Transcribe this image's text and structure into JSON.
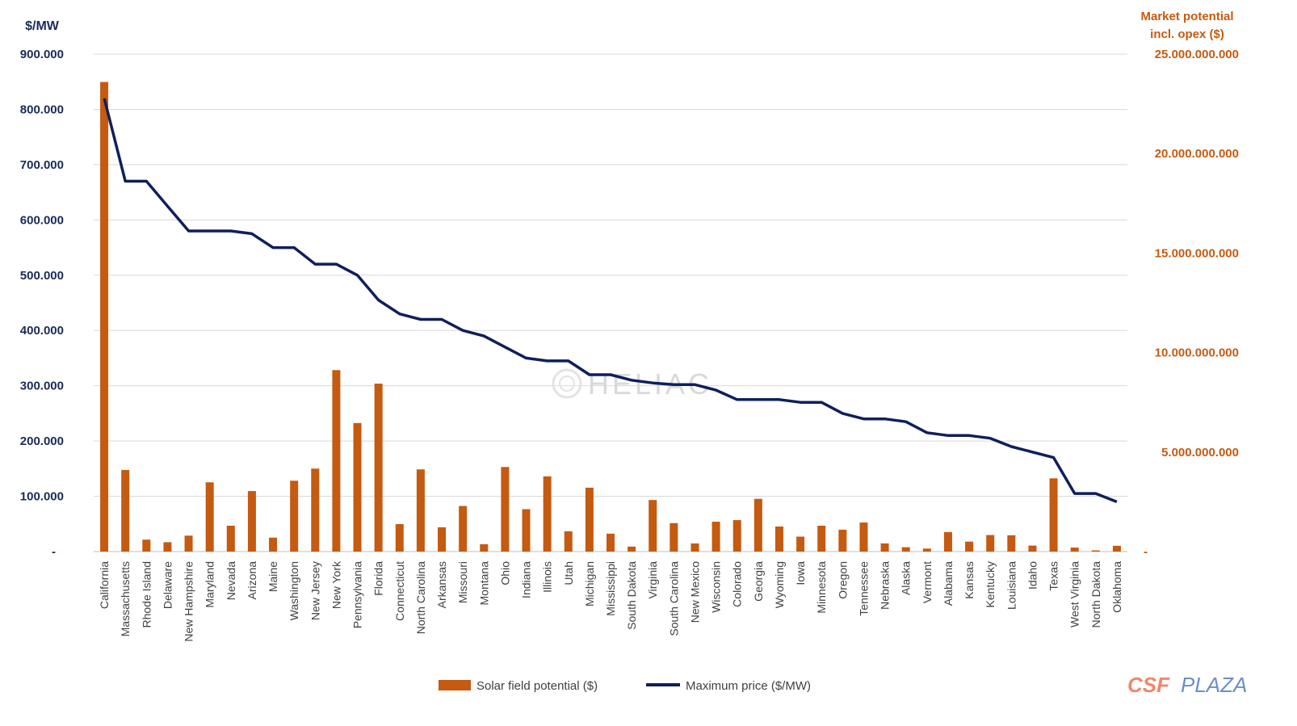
{
  "chart_data": {
    "type": "bar+line",
    "categories": [
      "California",
      "Massachusetts",
      "Rhode Island",
      "Delaware",
      "New Hampshire",
      "Maryland",
      "Nevada",
      "Arizona",
      "Maine",
      "Washington",
      "New Jersey",
      "New York",
      "Pennsylvania",
      "Florida",
      "Connecticut",
      "North Carolina",
      "Arkansas",
      "Missouri",
      "Montana",
      "Ohio",
      "Indiana",
      "Illinois",
      "Utah",
      "Michigan",
      "Mississippi",
      "South Dakota",
      "Virginia",
      "South Carolina",
      "New Mexico",
      "Wisconsin",
      "Colorado",
      "Georgia",
      "Wyoming",
      "Iowa",
      "Minnesota",
      "Oregon",
      "Tennessee",
      "Nebraska",
      "Alaska",
      "Vermont",
      "Alabama",
      "Kansas",
      "Kentucky",
      "Louisiana",
      "Idaho",
      "Texas",
      "West Virginia",
      "North Dakota",
      "Oklahoma"
    ],
    "series": [
      {
        "name": "Solar field potential ($)",
        "type": "bar",
        "axis": "right",
        "color": "#c55a11",
        "values": [
          23600000000,
          4100000000,
          600000000,
          470000000,
          800000000,
          3480000000,
          1300000000,
          3040000000,
          700000000,
          3560000000,
          4170000000,
          9120000000,
          6460000000,
          8440000000,
          1380000000,
          4130000000,
          1220000000,
          2290000000,
          370000000,
          4250000000,
          2130000000,
          3780000000,
          1020000000,
          3210000000,
          900000000,
          250000000,
          2590000000,
          1430000000,
          410000000,
          1500000000,
          1580000000,
          2650000000,
          1260000000,
          750000000,
          1300000000,
          1100000000,
          1460000000,
          410000000,
          220000000,
          150000000,
          980000000,
          500000000,
          830000000,
          820000000,
          300000000,
          3680000000,
          200000000,
          60000000,
          290000000
        ]
      },
      {
        "name": "Maximum price ($/MW)",
        "type": "line",
        "axis": "left",
        "color": "#0f1f5c",
        "values": [
          820000,
          670000,
          670000,
          625000,
          580000,
          580000,
          580000,
          575000,
          550000,
          550000,
          520000,
          520000,
          500000,
          455000,
          430000,
          420000,
          420000,
          400000,
          390000,
          370000,
          350000,
          345000,
          345000,
          320000,
          320000,
          310000,
          305000,
          302000,
          302000,
          292000,
          275000,
          275000,
          275000,
          270000,
          270000,
          250000,
          240000,
          240000,
          235000,
          215000,
          210000,
          210000,
          205000,
          190000,
          180000,
          170000,
          105000,
          105000,
          90000
        ]
      }
    ],
    "y_left": {
      "label": "$/MW",
      "ylim": [
        0,
        900000
      ],
      "ticks": [
        "-",
        "100.000",
        "200.000",
        "300.000",
        "400.000",
        "500.000",
        "600.000",
        "700.000",
        "800.000",
        "900.000"
      ]
    },
    "y_right": {
      "label_line1": "Market potential",
      "label_line2": "incl. opex ($)",
      "ylim": [
        0,
        25000000000
      ],
      "ticks": [
        "-",
        "5.000.000.000",
        "10.000.000.000",
        "15.000.000.000",
        "20.000.000.000",
        "25.000.000.000"
      ]
    },
    "legend": {
      "position": "bottom-center",
      "items": [
        "Solar field potential ($)",
        "Maximum price ($/MW)"
      ]
    },
    "grid": true
  },
  "watermark": "HELIAC",
  "logo": {
    "part1": "CSF",
    "part2": "PLAZA"
  }
}
